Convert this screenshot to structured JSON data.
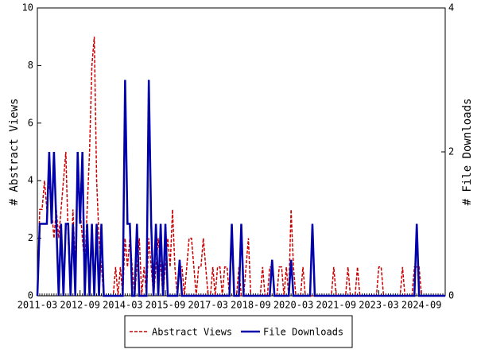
{
  "chart_data": {
    "type": "line",
    "x": [
      "2011-03",
      "2011-04",
      "2011-05",
      "2011-06",
      "2011-07",
      "2011-08",
      "2011-09",
      "2011-10",
      "2011-11",
      "2011-12",
      "2012-01",
      "2012-02",
      "2012-03",
      "2012-04",
      "2012-05",
      "2012-06",
      "2012-07",
      "2012-08",
      "2012-09",
      "2012-10",
      "2012-11",
      "2012-12",
      "2013-01",
      "2013-02",
      "2013-03",
      "2013-04",
      "2013-05",
      "2013-06",
      "2013-07",
      "2013-08",
      "2013-09",
      "2013-10",
      "2013-11",
      "2013-12",
      "2014-01",
      "2014-02",
      "2014-03",
      "2014-04",
      "2014-05",
      "2014-06",
      "2014-07",
      "2014-08",
      "2014-09",
      "2014-10",
      "2014-11",
      "2014-12",
      "2015-01",
      "2015-02",
      "2015-03",
      "2015-04",
      "2015-05",
      "2015-06",
      "2015-07",
      "2015-08",
      "2015-09",
      "2015-10",
      "2015-11",
      "2015-12",
      "2016-01",
      "2016-02",
      "2016-03",
      "2016-04",
      "2016-05",
      "2016-06",
      "2016-07",
      "2016-08",
      "2016-09",
      "2016-10",
      "2016-11",
      "2016-12",
      "2017-01",
      "2017-02",
      "2017-03",
      "2017-04",
      "2017-05",
      "2017-06",
      "2017-07",
      "2017-08",
      "2017-09",
      "2017-10",
      "2017-11",
      "2017-12",
      "2018-01",
      "2018-02",
      "2018-03",
      "2018-04",
      "2018-05",
      "2018-06",
      "2018-07",
      "2018-08",
      "2018-09",
      "2018-10",
      "2018-11",
      "2018-12",
      "2019-01",
      "2019-02",
      "2019-03",
      "2019-04",
      "2019-05",
      "2019-06",
      "2019-07",
      "2019-08",
      "2019-09",
      "2019-10",
      "2019-11",
      "2019-12",
      "2020-01",
      "2020-02",
      "2020-03",
      "2020-04",
      "2020-05",
      "2020-06",
      "2020-07",
      "2020-08",
      "2020-09",
      "2020-10",
      "2020-11",
      "2020-12",
      "2021-01",
      "2021-02",
      "2021-03",
      "2021-04",
      "2021-05",
      "2021-06",
      "2021-07",
      "2021-08",
      "2021-09",
      "2021-10",
      "2021-11",
      "2021-12",
      "2022-01",
      "2022-02",
      "2022-03",
      "2022-04",
      "2022-05",
      "2022-06",
      "2022-07",
      "2022-08",
      "2022-09",
      "2022-10",
      "2022-11",
      "2022-12",
      "2023-01",
      "2023-02",
      "2023-03",
      "2023-04",
      "2023-05",
      "2023-06",
      "2023-07",
      "2023-08",
      "2023-09",
      "2023-10",
      "2023-11",
      "2023-12",
      "2024-01",
      "2024-02",
      "2024-03",
      "2024-04",
      "2024-05",
      "2024-06",
      "2024-07",
      "2024-08",
      "2024-09",
      "2024-10",
      "2024-11",
      "2024-12",
      "2025-01",
      "2025-02",
      "2025-03",
      "2025-04",
      "2025-05",
      "2025-06",
      "2025-07"
    ],
    "xticks": [
      "2011-03",
      "2012-09",
      "2014-03",
      "2015-09",
      "2017-03",
      "2018-09",
      "2020-03",
      "2021-09",
      "2023-03",
      "2024-09"
    ],
    "ylabel": "# Abstract Views",
    "y2label": "# File Downloads",
    "ylim": [
      0,
      10
    ],
    "yticks": [
      0,
      2,
      4,
      6,
      8,
      10
    ],
    "y2lim": [
      0,
      4
    ],
    "y2ticks": [
      0,
      2,
      4
    ],
    "series": [
      {
        "name": "Abstract Views",
        "color": "#cc0000",
        "dash": true,
        "values": [
          0,
          3,
          3,
          4,
          3,
          4,
          3,
          2,
          3,
          2,
          3,
          4,
          5,
          2,
          0,
          3,
          1,
          5,
          3,
          2,
          1,
          3,
          5,
          8,
          9,
          4,
          2,
          1,
          0,
          0,
          0,
          0,
          0,
          1,
          0,
          1,
          0,
          2,
          1,
          2,
          1,
          0,
          1,
          2,
          0,
          1,
          0,
          2,
          1,
          0,
          1,
          2,
          1,
          0,
          1,
          2,
          1,
          3,
          1,
          0,
          1,
          1,
          0,
          1,
          2,
          2,
          1,
          0,
          1,
          1,
          2,
          1,
          0,
          0,
          1,
          0,
          1,
          1,
          0,
          1,
          1,
          0,
          2,
          0,
          0,
          1,
          0,
          0,
          1,
          2,
          0,
          0,
          0,
          0,
          0,
          1,
          0,
          0,
          1,
          1,
          0,
          0,
          1,
          1,
          0,
          1,
          0,
          3,
          1,
          0,
          0,
          0,
          1,
          0,
          0,
          0,
          0,
          0,
          0,
          0,
          0,
          0,
          0,
          0,
          0,
          1,
          0,
          0,
          0,
          0,
          0,
          1,
          0,
          0,
          0,
          1,
          0,
          0,
          0,
          0,
          0,
          0,
          0,
          0,
          1,
          1,
          0,
          0,
          0,
          0,
          0,
          0,
          0,
          0,
          1,
          0,
          0,
          0,
          0,
          1,
          1,
          1,
          0,
          0,
          0,
          0,
          0,
          0,
          0,
          0,
          0,
          0,
          0
        ]
      },
      {
        "name": "File Downloads",
        "color": "#0000aa",
        "axis": "y2",
        "values": [
          0,
          1,
          1,
          1,
          1,
          2,
          1,
          2,
          1,
          0,
          1,
          0,
          1,
          1,
          0,
          1,
          0,
          2,
          1,
          2,
          0,
          1,
          0,
          1,
          0,
          1,
          0,
          1,
          0,
          0,
          0,
          0,
          0,
          0,
          0,
          0,
          0,
          3,
          1,
          1,
          0,
          0,
          1,
          0,
          0,
          0,
          0,
          3,
          1,
          0,
          1,
          0,
          1,
          0,
          1,
          0,
          0,
          0,
          0,
          0,
          0.5,
          0,
          0,
          0,
          0,
          0,
          0,
          0,
          0,
          0,
          0,
          0,
          0,
          0,
          0,
          0,
          0,
          0,
          0,
          0,
          0,
          0,
          1,
          0,
          0,
          0,
          1,
          0,
          0,
          0,
          0,
          0,
          0,
          0,
          0,
          0,
          0,
          0,
          0,
          0.5,
          0,
          0,
          0,
          0,
          0,
          0,
          0,
          0.5,
          0,
          0,
          0,
          0,
          0,
          0,
          0,
          0,
          1,
          0,
          0,
          0,
          0,
          0,
          0,
          0,
          0,
          0,
          0,
          0,
          0,
          0,
          0,
          0,
          0,
          0,
          0,
          0,
          0,
          0,
          0,
          0,
          0,
          0,
          0,
          0,
          0,
          0,
          0,
          0,
          0,
          0,
          0,
          0,
          0,
          0,
          0,
          0,
          0,
          0,
          0,
          0,
          1,
          0,
          0,
          0,
          0,
          0,
          0,
          0,
          0,
          0,
          0,
          0,
          0
        ]
      }
    ]
  }
}
